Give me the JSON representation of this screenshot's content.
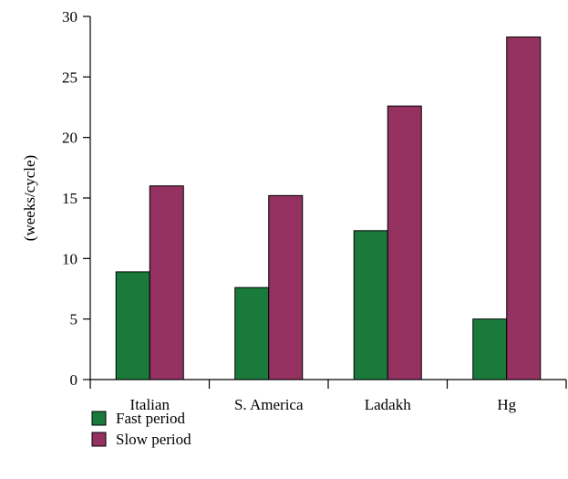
{
  "chart_data": {
    "type": "bar",
    "categories": [
      "Italian",
      "S. America",
      "Ladakh",
      "Hg"
    ],
    "series": [
      {
        "name": "Fast period",
        "values": [
          8.9,
          7.6,
          12.3,
          5.0
        ],
        "color": "#1a7a3c"
      },
      {
        "name": "Slow period",
        "values": [
          16.0,
          15.2,
          22.6,
          28.3
        ],
        "color": "#943160"
      }
    ],
    "title": "",
    "xlabel": "",
    "ylabel": "(weeks/cycle)",
    "ylim": [
      0,
      30
    ],
    "yticks": [
      0,
      5,
      10,
      15,
      20,
      25,
      30
    ],
    "grid": false,
    "legend_position": "bottom-left"
  }
}
